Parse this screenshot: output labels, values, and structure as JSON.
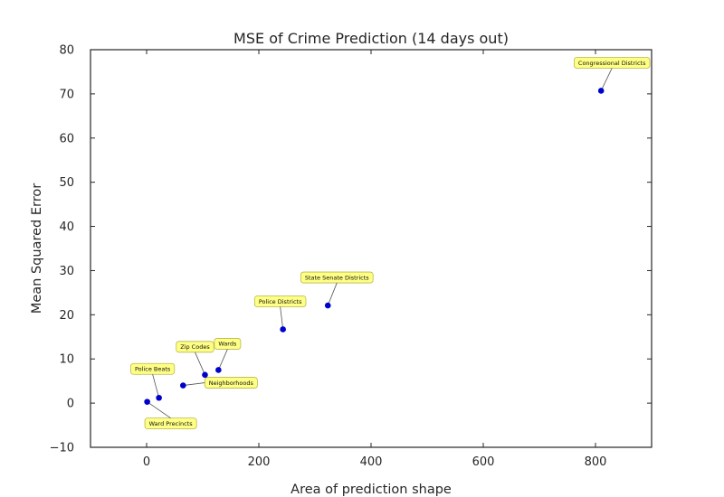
{
  "chart_data": {
    "type": "scatter",
    "title": "MSE of Crime Prediction (14 days out)",
    "xlabel": "Area of prediction shape",
    "ylabel": "Mean Squared Error",
    "xlim": [
      -100,
      900
    ],
    "ylim": [
      -10,
      80
    ],
    "x_ticks": [
      0,
      200,
      400,
      600,
      800
    ],
    "y_ticks": [
      -10,
      0,
      10,
      20,
      30,
      40,
      50,
      60,
      70,
      80
    ],
    "grid": false,
    "point_color": "#0000cc",
    "annotation_color": "#ffff66",
    "points": [
      {
        "label": "Ward Precincts",
        "x": 1,
        "y": 0.3
      },
      {
        "label": "Police Beats",
        "x": 22,
        "y": 1.2
      },
      {
        "label": "Neighborhoods",
        "x": 65,
        "y": 4.0
      },
      {
        "label": "Zip Codes",
        "x": 104,
        "y": 6.4
      },
      {
        "label": "Wards",
        "x": 128,
        "y": 7.5
      },
      {
        "label": "Police Districts",
        "x": 243,
        "y": 16.7
      },
      {
        "label": "State Senate Districts",
        "x": 323,
        "y": 22.1
      },
      {
        "label": "Congressional Districts",
        "x": 810,
        "y": 70.7
      }
    ]
  }
}
